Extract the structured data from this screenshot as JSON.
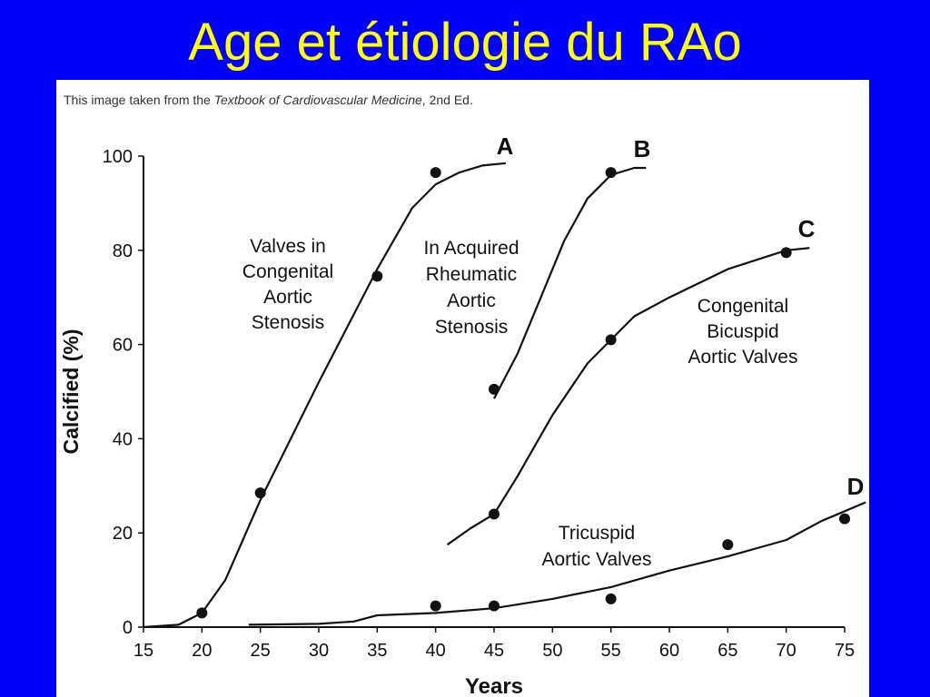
{
  "slide": {
    "title": "Age et étiologie du RAo"
  },
  "figure": {
    "source_prefix": "This image taken from the ",
    "source_book": "Textbook of Cardiovascular Medicine",
    "source_suffix": ", 2nd Ed."
  },
  "colors": {
    "background": "#0000ff",
    "title": "#ffff00",
    "panel": "#ffffff",
    "ink": "#111111"
  },
  "chart_data": {
    "type": "line",
    "title": "",
    "xlabel": "Years",
    "ylabel": "Calcified (%)",
    "xlim": [
      15,
      75
    ],
    "ylim": [
      0,
      100
    ],
    "x_ticks": [
      15,
      20,
      25,
      30,
      35,
      40,
      45,
      50,
      55,
      60,
      65,
      70,
      75
    ],
    "y_ticks": [
      0,
      20,
      40,
      60,
      80,
      100
    ],
    "grid": false,
    "legend": "none",
    "series": [
      {
        "id": "A",
        "name": "A",
        "annotation": [
          "Valves in",
          "Congenital",
          "Aortic",
          "Stenosis"
        ],
        "points": [
          [
            20,
            3
          ],
          [
            25,
            28.5
          ],
          [
            35,
            74.5
          ],
          [
            40,
            96.5
          ]
        ],
        "curve": [
          [
            15,
            0
          ],
          [
            18,
            0.5
          ],
          [
            20,
            3
          ],
          [
            22,
            10
          ],
          [
            25,
            27
          ],
          [
            30,
            52
          ],
          [
            35,
            76
          ],
          [
            38,
            89
          ],
          [
            40,
            94
          ],
          [
            42,
            96.5
          ],
          [
            44,
            98
          ],
          [
            46,
            98.5
          ]
        ]
      },
      {
        "id": "B",
        "name": "B",
        "annotation": [
          "In Acquired",
          "Rheumatic",
          "Aortic",
          "Stenosis"
        ],
        "points": [
          [
            45,
            50.5
          ],
          [
            55,
            96.5
          ]
        ],
        "curve": [
          [
            45,
            48.5
          ],
          [
            47,
            58
          ],
          [
            49,
            70
          ],
          [
            51,
            82
          ],
          [
            53,
            91
          ],
          [
            55,
            96
          ],
          [
            57,
            97.5
          ],
          [
            58,
            97.5
          ]
        ]
      },
      {
        "id": "C",
        "name": "C",
        "annotation": [
          "Congenital",
          "Bicuspid",
          "Aortic Valves"
        ],
        "points": [
          [
            45,
            24
          ],
          [
            55,
            61
          ],
          [
            70,
            79.5
          ]
        ],
        "curve": [
          [
            41,
            17.5
          ],
          [
            43,
            21
          ],
          [
            45,
            24
          ],
          [
            47,
            32
          ],
          [
            50,
            45
          ],
          [
            53,
            56
          ],
          [
            55,
            61
          ],
          [
            57,
            66
          ],
          [
            60,
            70
          ],
          [
            65,
            76
          ],
          [
            70,
            80
          ],
          [
            72,
            80.5
          ]
        ]
      },
      {
        "id": "D",
        "name": "D",
        "annotation": [
          "Tricuspid",
          "Aortic Valves"
        ],
        "points": [
          [
            40,
            4.5
          ],
          [
            45,
            4.5
          ],
          [
            55,
            6
          ],
          [
            65,
            17.5
          ],
          [
            75,
            23
          ]
        ],
        "curve": [
          [
            24,
            0.5
          ],
          [
            30,
            0.7
          ],
          [
            33,
            1.2
          ],
          [
            35,
            2.5
          ],
          [
            40,
            3
          ],
          [
            45,
            4
          ],
          [
            50,
            6
          ],
          [
            55,
            8.5
          ],
          [
            60,
            12
          ],
          [
            65,
            15
          ],
          [
            70,
            18.5
          ],
          [
            73,
            22.5
          ],
          [
            76.8,
            26.5
          ]
        ]
      }
    ]
  }
}
